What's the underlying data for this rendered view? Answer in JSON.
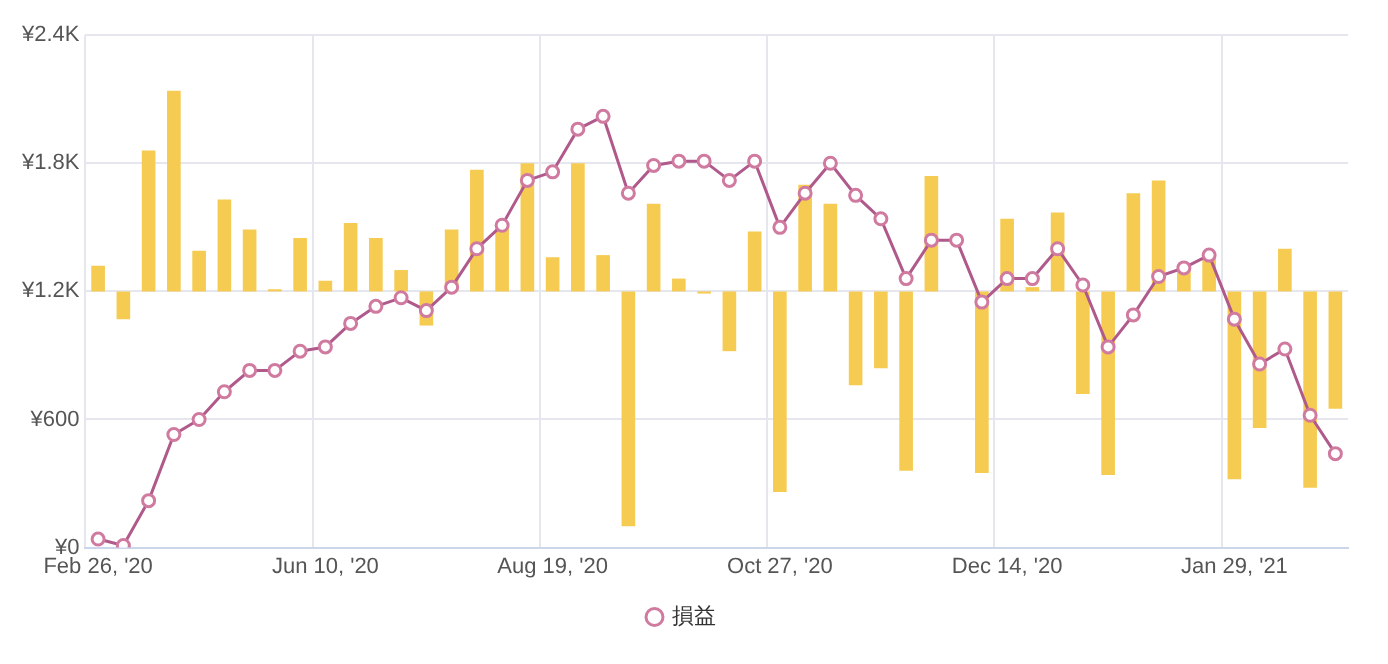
{
  "chart_data": {
    "type": "bar",
    "categories": [
      "Feb 26, '20",
      null,
      null,
      null,
      null,
      null,
      null,
      null,
      null,
      "Jun 10, '20",
      null,
      null,
      null,
      null,
      null,
      null,
      null,
      null,
      "Aug 19, '20",
      null,
      null,
      null,
      null,
      null,
      null,
      null,
      null,
      "Oct 27, '20",
      null,
      null,
      null,
      null,
      null,
      null,
      null,
      null,
      "Dec 14, '20",
      null,
      null,
      null,
      null,
      null,
      null,
      null,
      null,
      "Jan 29, '21",
      null,
      null,
      null,
      null
    ],
    "series": [
      {
        "color": "#f6cb52",
        "base": [
          1200,
          1200,
          1200,
          1200,
          1200,
          1200,
          1200,
          1200,
          1200,
          1200,
          1200,
          1200,
          1200,
          1200,
          1200,
          1200,
          1200,
          1200,
          1200,
          1200,
          1200,
          1200,
          1200,
          1200,
          1200,
          1200,
          1200,
          1200,
          1200,
          1200,
          1200,
          1200,
          1200,
          1200,
          null,
          1200,
          1200,
          1200,
          1200,
          1200,
          1200,
          1200,
          1200,
          1200,
          1200,
          1200,
          1200,
          1200,
          1200,
          1200
        ],
        "values": [
          120,
          -130,
          660,
          940,
          190,
          430,
          290,
          10,
          250,
          50,
          320,
          250,
          100,
          -160,
          290,
          570,
          320,
          600,
          160,
          600,
          170,
          -1100,
          410,
          60,
          -10,
          -280,
          280,
          -940,
          500,
          410,
          -440,
          -360,
          -840,
          540,
          null,
          -850,
          340,
          20,
          370,
          -480,
          -860,
          460,
          520,
          110,
          160,
          -880,
          -640,
          200,
          -920,
          -550
        ]
      },
      {
        "type": "line",
        "name": "損益",
        "color": "#b05a8c",
        "values": [
          40,
          10,
          220,
          530,
          600,
          730,
          830,
          830,
          920,
          940,
          1050,
          1130,
          1170,
          1110,
          1220,
          1400,
          1510,
          1720,
          1760,
          1960,
          2020,
          1660,
          1790,
          1810,
          1810,
          1720,
          1810,
          1500,
          1660,
          1800,
          1650,
          1540,
          1260,
          1440,
          1440,
          1150,
          1260,
          1260,
          1400,
          1230,
          940,
          1090,
          1270,
          1310,
          1370,
          1070,
          860,
          930,
          620,
          440
        ]
      }
    ],
    "ylim": [
      0,
      2400
    ],
    "yticks": [
      {
        "value": 0,
        "label": "¥0"
      },
      {
        "value": 600,
        "label": "¥600"
      },
      {
        "value": 1200,
        "label": "¥1.2K"
      },
      {
        "value": 1800,
        "label": "¥1.8K"
      },
      {
        "value": 2400,
        "label": "¥2.4K"
      }
    ],
    "grid": true,
    "legend": "bottom",
    "marker": "circle"
  }
}
